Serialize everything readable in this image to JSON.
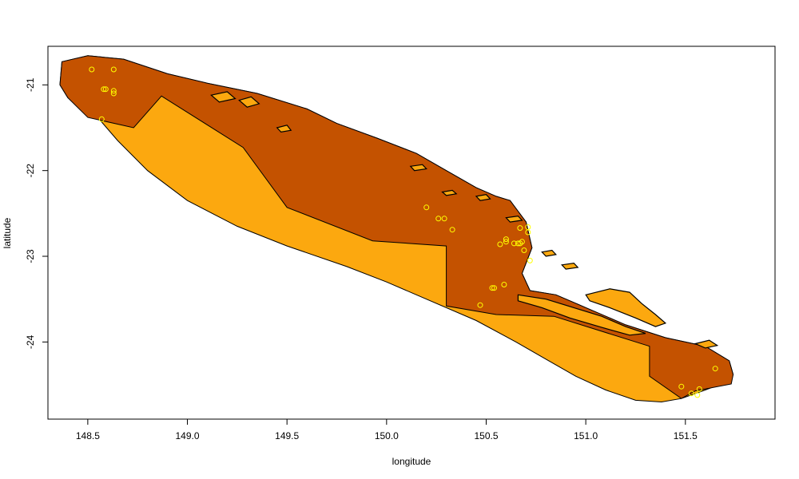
{
  "chart_data": {
    "type": "map",
    "title": "",
    "xlabel": "longitude",
    "ylabel": "latitude",
    "xlim": [
      148.3,
      151.95
    ],
    "ylim": [
      -24.9,
      -20.55
    ],
    "x_ticks": [
      148.5,
      149.0,
      149.5,
      150.0,
      150.5,
      151.0,
      151.5
    ],
    "x_tick_labels": [
      "148.5",
      "149.0",
      "149.5",
      "150.0",
      "150.5",
      "151.0",
      "151.5"
    ],
    "y_ticks": [
      -21,
      -22,
      -23,
      -24
    ],
    "y_tick_labels": [
      "-21",
      "-22",
      "-23",
      "-24"
    ],
    "colors": {
      "outer_region": "#FCA80F",
      "inner_region": "#C45200",
      "land": "#FCA80F",
      "points": "#FFFF00",
      "outline": "#000000"
    },
    "outer_region": [
      [
        148.37,
        -20.73
      ],
      [
        148.5,
        -20.66
      ],
      [
        148.68,
        -20.7
      ],
      [
        148.9,
        -20.87
      ],
      [
        149.1,
        -20.98
      ],
      [
        149.35,
        -21.1
      ],
      [
        149.6,
        -21.28
      ],
      [
        149.75,
        -21.45
      ],
      [
        149.95,
        -21.62
      ],
      [
        150.15,
        -21.8
      ],
      [
        150.3,
        -22.0
      ],
      [
        150.45,
        -22.2
      ],
      [
        150.55,
        -22.3
      ],
      [
        150.62,
        -22.35
      ],
      [
        150.7,
        -22.6
      ],
      [
        150.73,
        -22.9
      ],
      [
        150.68,
        -23.2
      ],
      [
        150.72,
        -23.4
      ],
      [
        150.85,
        -23.45
      ],
      [
        151.0,
        -23.6
      ],
      [
        151.2,
        -23.8
      ],
      [
        151.4,
        -23.95
      ],
      [
        151.6,
        -24.05
      ],
      [
        151.72,
        -24.22
      ],
      [
        151.74,
        -24.38
      ],
      [
        151.7,
        -24.47
      ],
      [
        151.6,
        -24.56
      ],
      [
        151.48,
        -24.66
      ],
      [
        151.38,
        -24.7
      ],
      [
        151.25,
        -24.68
      ],
      [
        151.1,
        -24.56
      ],
      [
        150.95,
        -24.4
      ],
      [
        150.8,
        -24.2
      ],
      [
        150.65,
        -24.0
      ],
      [
        150.45,
        -23.75
      ],
      [
        150.2,
        -23.5
      ],
      [
        150.0,
        -23.3
      ],
      [
        149.8,
        -23.12
      ],
      [
        149.5,
        -22.88
      ],
      [
        149.25,
        -22.65
      ],
      [
        149.0,
        -22.35
      ],
      [
        148.8,
        -22.0
      ],
      [
        148.65,
        -21.65
      ],
      [
        148.55,
        -21.38
      ],
      [
        148.5,
        -21.3
      ],
      [
        148.4,
        -21.15
      ],
      [
        148.36,
        -21.0
      ]
    ],
    "inner_region": [
      [
        148.37,
        -20.73
      ],
      [
        148.5,
        -20.66
      ],
      [
        148.68,
        -20.7
      ],
      [
        148.9,
        -20.87
      ],
      [
        149.1,
        -20.98
      ],
      [
        149.35,
        -21.1
      ],
      [
        149.6,
        -21.28
      ],
      [
        149.75,
        -21.45
      ],
      [
        149.95,
        -21.62
      ],
      [
        150.15,
        -21.8
      ],
      [
        150.3,
        -22.0
      ],
      [
        150.45,
        -22.2
      ],
      [
        150.55,
        -22.3
      ],
      [
        150.62,
        -22.35
      ],
      [
        150.7,
        -22.6
      ],
      [
        150.73,
        -22.9
      ],
      [
        150.68,
        -23.2
      ],
      [
        150.72,
        -23.4
      ],
      [
        150.85,
        -23.45
      ],
      [
        151.0,
        -23.6
      ],
      [
        151.2,
        -23.8
      ],
      [
        151.4,
        -23.95
      ],
      [
        151.6,
        -24.05
      ],
      [
        151.72,
        -24.22
      ],
      [
        151.74,
        -24.38
      ],
      [
        151.73,
        -24.49
      ],
      [
        151.55,
        -24.57
      ],
      [
        151.48,
        -24.66
      ],
      [
        151.32,
        -24.4
      ],
      [
        151.32,
        -24.05
      ],
      [
        150.84,
        -23.7
      ],
      [
        150.55,
        -23.68
      ],
      [
        150.3,
        -23.58
      ],
      [
        150.3,
        -22.88
      ],
      [
        149.93,
        -22.82
      ],
      [
        149.5,
        -22.43
      ],
      [
        149.28,
        -21.73
      ],
      [
        148.87,
        -21.13
      ],
      [
        148.73,
        -21.5
      ],
      [
        148.5,
        -21.38
      ],
      [
        148.4,
        -21.15
      ],
      [
        148.36,
        -21.0
      ]
    ],
    "land": [
      [
        [
          150.66,
          -23.45
        ],
        [
          150.8,
          -23.5
        ],
        [
          150.94,
          -23.6
        ],
        [
          151.08,
          -23.7
        ],
        [
          151.2,
          -23.82
        ],
        [
          151.3,
          -23.9
        ],
        [
          151.22,
          -23.92
        ],
        [
          151.08,
          -23.83
        ],
        [
          150.92,
          -23.72
        ],
        [
          150.78,
          -23.6
        ],
        [
          150.66,
          -23.52
        ]
      ],
      [
        [
          151.0,
          -23.45
        ],
        [
          151.12,
          -23.38
        ],
        [
          151.22,
          -23.42
        ],
        [
          151.28,
          -23.55
        ],
        [
          151.35,
          -23.68
        ],
        [
          151.4,
          -23.78
        ],
        [
          151.35,
          -23.82
        ],
        [
          151.25,
          -23.72
        ],
        [
          151.12,
          -23.6
        ],
        [
          151.02,
          -23.52
        ]
      ],
      [
        [
          151.55,
          -24.02
        ],
        [
          151.62,
          -23.98
        ],
        [
          151.66,
          -24.04
        ],
        [
          151.6,
          -24.07
        ]
      ],
      [
        [
          149.12,
          -21.12
        ],
        [
          149.2,
          -21.08
        ],
        [
          149.24,
          -21.16
        ],
        [
          149.16,
          -21.2
        ]
      ],
      [
        [
          149.26,
          -21.18
        ],
        [
          149.32,
          -21.14
        ],
        [
          149.36,
          -21.22
        ],
        [
          149.3,
          -21.26
        ]
      ],
      [
        [
          149.45,
          -21.5
        ],
        [
          149.5,
          -21.47
        ],
        [
          149.52,
          -21.53
        ],
        [
          149.47,
          -21.55
        ]
      ],
      [
        [
          150.12,
          -21.95
        ],
        [
          150.18,
          -21.93
        ],
        [
          150.2,
          -21.98
        ],
        [
          150.14,
          -22.0
        ]
      ],
      [
        [
          150.28,
          -22.25
        ],
        [
          150.33,
          -22.23
        ],
        [
          150.35,
          -22.27
        ],
        [
          150.3,
          -22.29
        ]
      ],
      [
        [
          150.45,
          -22.3
        ],
        [
          150.5,
          -22.28
        ],
        [
          150.52,
          -22.33
        ],
        [
          150.47,
          -22.35
        ]
      ],
      [
        [
          150.6,
          -22.55
        ],
        [
          150.66,
          -22.53
        ],
        [
          150.68,
          -22.58
        ],
        [
          150.62,
          -22.6
        ]
      ],
      [
        [
          150.88,
          -23.1
        ],
        [
          150.94,
          -23.08
        ],
        [
          150.96,
          -23.13
        ],
        [
          150.9,
          -23.15
        ]
      ],
      [
        [
          150.78,
          -22.95
        ],
        [
          150.83,
          -22.93
        ],
        [
          150.85,
          -22.98
        ],
        [
          150.8,
          -23.0
        ]
      ]
    ],
    "points": [
      [
        148.52,
        -20.82
      ],
      [
        148.63,
        -20.82
      ],
      [
        148.58,
        -21.05
      ],
      [
        148.59,
        -21.05
      ],
      [
        148.63,
        -21.07
      ],
      [
        148.63,
        -21.1
      ],
      [
        148.57,
        -21.4
      ],
      [
        150.2,
        -22.43
      ],
      [
        150.26,
        -22.56
      ],
      [
        150.29,
        -22.56
      ],
      [
        150.33,
        -22.69
      ],
      [
        150.57,
        -22.86
      ],
      [
        150.6,
        -22.8
      ],
      [
        150.6,
        -22.83
      ],
      [
        150.64,
        -22.85
      ],
      [
        150.66,
        -22.85
      ],
      [
        150.67,
        -22.85
      ],
      [
        150.68,
        -22.83
      ],
      [
        150.71,
        -22.72
      ],
      [
        150.71,
        -22.66
      ],
      [
        150.67,
        -22.67
      ],
      [
        150.69,
        -22.93
      ],
      [
        150.72,
        -23.05
      ],
      [
        150.53,
        -23.37
      ],
      [
        150.54,
        -23.37
      ],
      [
        150.59,
        -23.33
      ],
      [
        150.47,
        -23.57
      ],
      [
        151.65,
        -24.31
      ],
      [
        151.48,
        -24.52
      ],
      [
        151.53,
        -24.6
      ],
      [
        151.57,
        -24.55
      ],
      [
        151.56,
        -24.62
      ]
    ]
  }
}
